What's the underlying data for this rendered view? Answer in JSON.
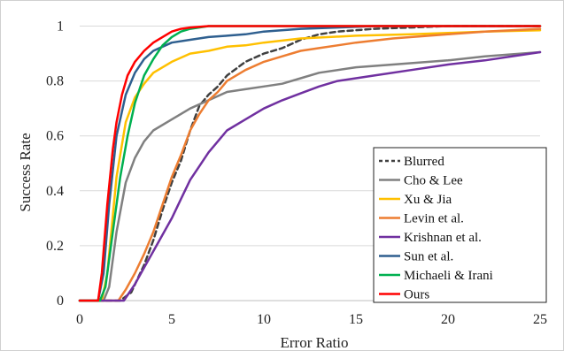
{
  "chart_data": {
    "type": "line",
    "title": "",
    "xlabel": "Error Ratio",
    "ylabel": "Success Rate",
    "xlim": [
      0,
      25
    ],
    "ylim": [
      0,
      1.05
    ],
    "x_ticks": [
      0,
      5,
      10,
      15,
      20,
      25
    ],
    "y_ticks": [
      0,
      0.2,
      0.4,
      0.6,
      0.8,
      1
    ],
    "y_tick_labels": [
      "0",
      "0.2",
      "0.4",
      "0.6",
      "0.8",
      "1"
    ],
    "grid": "horizontal",
    "legend_position": "bottom-right",
    "series": [
      {
        "name": "Blurred",
        "color": "#404040",
        "dash": "6,4",
        "x": [
          0,
          2.2,
          2.8,
          3.5,
          4,
          4.5,
          5,
          5.5,
          6,
          6.5,
          7,
          7.5,
          8,
          9,
          10,
          11,
          12,
          13,
          14,
          15,
          16,
          18,
          20,
          22,
          25
        ],
        "y": [
          0,
          0,
          0.03,
          0.13,
          0.22,
          0.33,
          0.43,
          0.51,
          0.62,
          0.71,
          0.75,
          0.78,
          0.82,
          0.87,
          0.9,
          0.92,
          0.95,
          0.97,
          0.98,
          0.985,
          0.99,
          0.995,
          1,
          1,
          1
        ]
      },
      {
        "name": "Cho & Lee",
        "color": "#808080",
        "x": [
          0,
          1.3,
          1.6,
          2,
          2.5,
          3,
          3.5,
          4,
          5,
          6,
          7,
          8,
          9,
          10,
          11,
          12,
          13,
          15,
          17,
          20,
          22,
          25
        ],
        "y": [
          0,
          0,
          0.05,
          0.25,
          0.43,
          0.52,
          0.58,
          0.62,
          0.66,
          0.7,
          0.73,
          0.76,
          0.77,
          0.78,
          0.79,
          0.81,
          0.83,
          0.85,
          0.86,
          0.875,
          0.89,
          0.905
        ]
      },
      {
        "name": "Xu & Jia",
        "color": "#ffc000",
        "x": [
          0,
          1.2,
          1.5,
          2,
          2.5,
          3,
          3.5,
          4,
          5,
          6,
          7,
          8,
          9,
          10,
          12,
          15,
          18,
          20,
          22,
          25
        ],
        "y": [
          0,
          0,
          0.1,
          0.45,
          0.65,
          0.74,
          0.79,
          0.83,
          0.87,
          0.9,
          0.91,
          0.925,
          0.93,
          0.94,
          0.955,
          0.965,
          0.97,
          0.975,
          0.98,
          0.985
        ]
      },
      {
        "name": "Levin et al.",
        "color": "#ed7d31",
        "x": [
          0,
          2.1,
          2.5,
          3,
          3.5,
          4,
          4.5,
          5,
          5.5,
          6,
          6.5,
          7,
          7.5,
          8,
          9,
          10,
          11,
          12,
          13,
          14,
          15,
          17,
          20,
          22,
          25
        ],
        "y": [
          0,
          0,
          0.04,
          0.1,
          0.17,
          0.25,
          0.35,
          0.45,
          0.53,
          0.62,
          0.68,
          0.73,
          0.76,
          0.8,
          0.84,
          0.87,
          0.89,
          0.91,
          0.92,
          0.93,
          0.94,
          0.955,
          0.97,
          0.98,
          0.99
        ]
      },
      {
        "name": "Krishnan et al.",
        "color": "#7030a0",
        "x": [
          0,
          2.4,
          3,
          3.5,
          4,
          4.5,
          5,
          5.5,
          6,
          6.5,
          7,
          7.5,
          8,
          9,
          10,
          11,
          12,
          13,
          14,
          15,
          16,
          18,
          20,
          22,
          25
        ],
        "y": [
          0,
          0,
          0.06,
          0.12,
          0.18,
          0.24,
          0.3,
          0.37,
          0.44,
          0.49,
          0.54,
          0.58,
          0.62,
          0.66,
          0.7,
          0.73,
          0.755,
          0.78,
          0.8,
          0.81,
          0.82,
          0.84,
          0.86,
          0.875,
          0.905
        ]
      },
      {
        "name": "Sun et al.",
        "color": "#2e5f8f",
        "x": [
          0,
          1,
          1.3,
          1.6,
          2,
          2.5,
          3,
          3.5,
          4,
          4.5,
          5,
          6,
          7,
          8,
          9,
          10,
          12,
          14,
          16,
          18,
          20,
          25
        ],
        "y": [
          0,
          0,
          0.1,
          0.35,
          0.6,
          0.75,
          0.83,
          0.88,
          0.91,
          0.925,
          0.94,
          0.95,
          0.96,
          0.965,
          0.97,
          0.98,
          0.99,
          0.995,
          1,
          1,
          1,
          1
        ]
      },
      {
        "name": "Michaeli & Irani",
        "color": "#00b050",
        "x": [
          0,
          1.1,
          1.4,
          1.8,
          2.2,
          2.6,
          3,
          3.5,
          4,
          4.5,
          5,
          5.5,
          6,
          7,
          8,
          10,
          15,
          20,
          25
        ],
        "y": [
          0,
          0,
          0.05,
          0.25,
          0.45,
          0.6,
          0.72,
          0.82,
          0.88,
          0.93,
          0.96,
          0.98,
          0.99,
          1,
          1,
          1,
          1,
          1,
          1
        ]
      },
      {
        "name": "Ours",
        "color": "#ff0000",
        "x": [
          0,
          1,
          1.2,
          1.5,
          1.8,
          2,
          2.3,
          2.6,
          3,
          3.5,
          4,
          4.5,
          5,
          5.5,
          6,
          7,
          8,
          10,
          15,
          20,
          25
        ],
        "y": [
          0,
          0,
          0.1,
          0.35,
          0.55,
          0.65,
          0.75,
          0.82,
          0.87,
          0.91,
          0.94,
          0.96,
          0.98,
          0.99,
          0.995,
          1,
          1,
          1,
          1,
          1,
          1
        ]
      }
    ]
  }
}
